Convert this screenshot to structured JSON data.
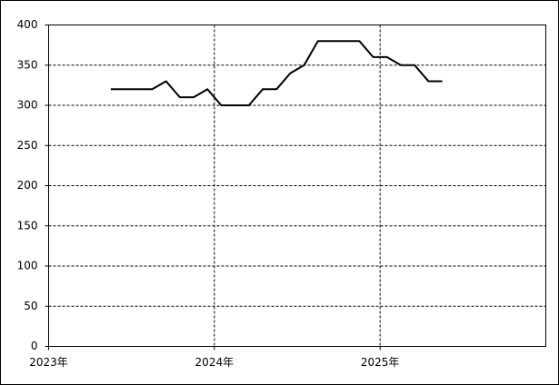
{
  "chart_data": {
    "type": "line",
    "x": [
      2023.375,
      2023.4583,
      2023.5417,
      2023.625,
      2023.7083,
      2023.7917,
      2023.875,
      2023.9583,
      2024.0417,
      2024.125,
      2024.2083,
      2024.2917,
      2024.375,
      2024.4583,
      2024.5417,
      2024.625,
      2024.7083,
      2024.7917,
      2024.875,
      2024.9583,
      2025.0417,
      2025.125,
      2025.2083,
      2025.2917,
      2025.375
    ],
    "series": [
      {
        "color": "#000000",
        "values": [
          320,
          320,
          320,
          320,
          330,
          310,
          310,
          320,
          300,
          300,
          300,
          320,
          320,
          340,
          350,
          380,
          380,
          380,
          380,
          360,
          360,
          350,
          350,
          330,
          330
        ]
      }
    ],
    "xlim": [
      2023,
      2026
    ],
    "xticks": [
      {
        "value": 2023,
        "label": "2023年"
      },
      {
        "value": 2024,
        "label": "2024年"
      },
      {
        "value": 2025,
        "label": "2025年"
      }
    ],
    "ylim": [
      0,
      400
    ],
    "yticks": [
      0,
      50,
      100,
      150,
      200,
      250,
      300,
      350,
      400
    ],
    "grid": true
  }
}
